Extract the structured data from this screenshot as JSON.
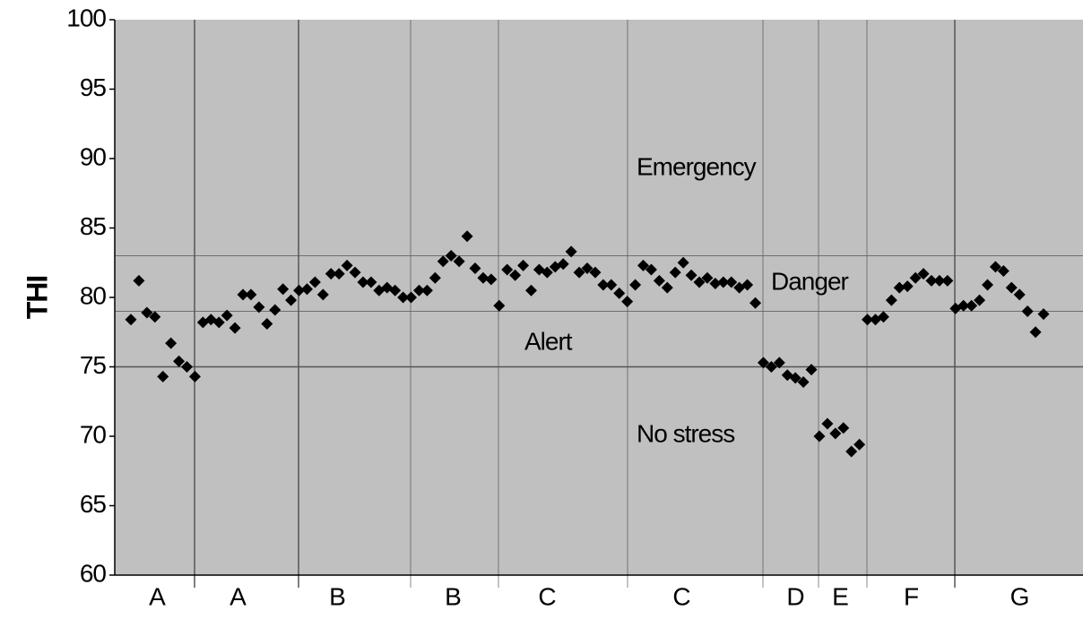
{
  "chart_data": {
    "type": "scatter",
    "y_label": "THI",
    "categories": [
      "A",
      "A",
      "B",
      "B",
      "C",
      "C",
      "D",
      "E",
      "F",
      "G"
    ],
    "annotations": [
      "Emergency",
      "Danger",
      "Alert",
      "No stress"
    ],
    "thresholds": [
      75,
      79,
      83
    ],
    "color": "#000000",
    "ylim": [
      60,
      100
    ],
    "yticks": [
      60,
      65,
      70,
      75,
      80,
      85,
      90,
      95,
      100
    ],
    "values": [
      78.4,
      81.2,
      78.9,
      78.6,
      74.3,
      76.7,
      75.4,
      75.0,
      74.3,
      78.2,
      78.4,
      78.2,
      78.7,
      77.8,
      80.2,
      80.2,
      79.3,
      78.1,
      79.1,
      80.6,
      79.8,
      80.5,
      80.6,
      81.1,
      80.2,
      81.7,
      81.7,
      82.3,
      81.8,
      81.1,
      81.1,
      80.5,
      80.7,
      80.5,
      80.0,
      80.0,
      80.5,
      80.5,
      81.4,
      82.6,
      83.0,
      82.6,
      84.4,
      82.1,
      81.4,
      81.3,
      79.4,
      82.0,
      81.6,
      82.3,
      80.5,
      82.0,
      81.8,
      82.2,
      82.4,
      83.3,
      81.8,
      82.1,
      81.8,
      80.9,
      80.9,
      80.3,
      79.7,
      80.9,
      82.3,
      82.0,
      81.2,
      80.7,
      81.8,
      82.5,
      81.6,
      81.1,
      81.4,
      81.0,
      81.1,
      81.1,
      80.7,
      80.9,
      79.6,
      75.3,
      75.0,
      75.3,
      74.4,
      74.2,
      73.9,
      74.8,
      70.0,
      70.9,
      70.2,
      70.6,
      68.9,
      69.4,
      78.4,
      78.4,
      78.6,
      79.8,
      80.7,
      80.8,
      81.4,
      81.7,
      81.2,
      81.2,
      81.2,
      79.2,
      79.4,
      79.4,
      79.8,
      80.9,
      82.2,
      81.9,
      80.7,
      80.2,
      79.0,
      77.5,
      78.8
    ]
  }
}
